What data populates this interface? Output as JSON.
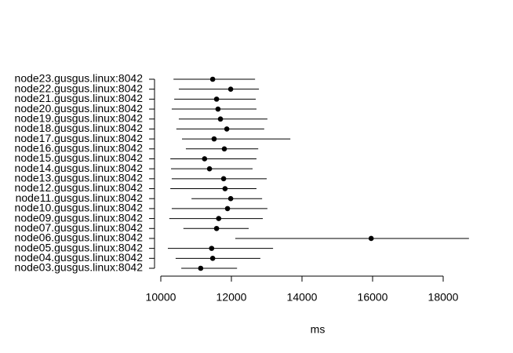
{
  "chart_data": {
    "type": "interval",
    "x_label": "ms",
    "categories": [
      "node23.gusgus.linux:8042",
      "node22.gusgus.linux:8042",
      "node21.gusgus.linux:8042",
      "node20.gusgus.linux:8042",
      "node19.gusgus.linux:8042",
      "node18.gusgus.linux:8042",
      "node17.gusgus.linux:8042",
      "node16.gusgus.linux:8042",
      "node15.gusgus.linux:8042",
      "node14.gusgus.linux:8042",
      "node13.gusgus.linux:8042",
      "node12.gusgus.linux:8042",
      "node11.gusgus.linux:8042",
      "node10.gusgus.linux:8042",
      "node09.gusgus.linux:8042",
      "node07.gusgus.linux:8042",
      "node06.gusgus.linux:8042",
      "node05.gusgus.linux:8042",
      "node04.gusgus.linux:8042",
      "node03.gusgus.linux:8042"
    ],
    "values": [
      11470,
      11980,
      11580,
      11620,
      11690,
      11870,
      11510,
      11800,
      11240,
      11380,
      11780,
      11820,
      11980,
      11890,
      11640,
      11580,
      15960,
      11440,
      11470,
      11130
    ],
    "lower": [
      10360,
      10510,
      10380,
      10310,
      10510,
      10440,
      10600,
      10710,
      10270,
      10290,
      10310,
      10270,
      10870,
      10310,
      10240,
      10640,
      12110,
      10200,
      10420,
      10580
    ],
    "upper": [
      12670,
      12780,
      12690,
      12710,
      13020,
      12930,
      13670,
      12760,
      12710,
      12600,
      13000,
      12710,
      12870,
      13020,
      12890,
      12490,
      18730,
      13180,
      12820,
      12160
    ],
    "color": "#000000",
    "xlim": [
      10000,
      18000
    ],
    "xticks": [
      10000,
      12000,
      14000,
      16000,
      18000
    ]
  }
}
